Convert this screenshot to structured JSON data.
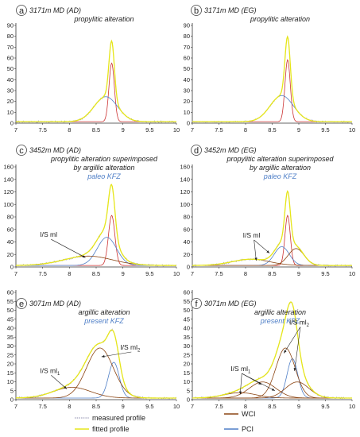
{
  "colors": {
    "measured": "#8888aa",
    "fitted": "#e6e619",
    "wci": "#8b4513",
    "pci": "#4f7fc7",
    "component": "#cc3333",
    "annotation_blue": "#4f7fc7"
  },
  "legend": {
    "measured": "measured profile",
    "fitted": "fitted profile",
    "wci": "WCI",
    "pci": "PCI"
  },
  "chart_data": [
    {
      "type": "line",
      "letter": "a",
      "title_lines": [
        "3171m MD (AD)",
        "propylitic alteration"
      ],
      "kfz": "",
      "xlim": [
        7,
        10
      ],
      "ylim": [
        0,
        90
      ],
      "xticks": [
        "7",
        "7.5",
        "8",
        "8.5",
        "9",
        "9.5",
        "10"
      ],
      "yticks": [
        0,
        10,
        20,
        30,
        40,
        50,
        60,
        70,
        80,
        90
      ],
      "components": [
        {
          "mu": 8.79,
          "amp": 54,
          "sigma": 0.05,
          "color": "component"
        },
        {
          "mu": 8.68,
          "amp": 23,
          "sigma": 0.22,
          "color": "pci"
        }
      ],
      "labels": []
    },
    {
      "type": "line",
      "letter": "b",
      "title_lines": [
        "3171m MD (EG)",
        "propylitic alteration"
      ],
      "kfz": "",
      "xlim": [
        7,
        10
      ],
      "ylim": [
        0,
        90
      ],
      "xticks": [
        "7",
        "7.5",
        "8",
        "8.5",
        "9",
        "9.5",
        "10"
      ],
      "yticks": [
        0,
        10,
        20,
        30,
        40,
        50,
        60,
        70,
        80,
        90
      ],
      "components": [
        {
          "mu": 8.79,
          "amp": 57,
          "sigma": 0.05,
          "color": "component"
        },
        {
          "mu": 8.68,
          "amp": 24,
          "sigma": 0.22,
          "color": "pci"
        }
      ],
      "labels": []
    },
    {
      "type": "line",
      "letter": "c",
      "title_lines": [
        "3452m MD (AD)",
        "propylitic alteration superimposed",
        "by argillic alteration"
      ],
      "kfz": "paleo KFZ",
      "xlim": [
        7,
        10
      ],
      "ylim": [
        0,
        160
      ],
      "xticks": [
        "7",
        "7.5",
        "8",
        "8.5",
        "9",
        "9.5",
        "10"
      ],
      "yticks": [
        0,
        20,
        40,
        60,
        80,
        100,
        120,
        140,
        160
      ],
      "components": [
        {
          "mu": 8.79,
          "amp": 80,
          "sigma": 0.06,
          "color": "component"
        },
        {
          "mu": 8.7,
          "amp": 45,
          "sigma": 0.18,
          "color": "pci"
        },
        {
          "mu": 8.35,
          "amp": 15,
          "sigma": 0.45,
          "color": "wci"
        }
      ],
      "labels": [
        {
          "text": "I/S ml",
          "sub": "",
          "x": 7.45,
          "y": 48,
          "targets": [
            [
              8.3,
              15
            ]
          ]
        }
      ]
    },
    {
      "type": "line",
      "letter": "d",
      "title_lines": [
        "3452m MD (EG)",
        "propylitic alteration superimposed",
        "by argillic alteration"
      ],
      "kfz": "paleo KFZ",
      "xlim": [
        7,
        10
      ],
      "ylim": [
        0,
        160
      ],
      "xticks": [
        "7",
        "7.5",
        "8",
        "8.5",
        "9",
        "9.5",
        "10"
      ],
      "yticks": [
        0,
        20,
        40,
        60,
        80,
        100,
        120,
        140,
        160
      ],
      "components": [
        {
          "mu": 8.79,
          "amp": 80,
          "sigma": 0.05,
          "color": "component"
        },
        {
          "mu": 8.68,
          "amp": 30,
          "sigma": 0.14,
          "color": "pci"
        },
        {
          "mu": 8.95,
          "amp": 27,
          "sigma": 0.15,
          "color": "wci"
        },
        {
          "mu": 8.1,
          "amp": 10,
          "sigma": 0.35,
          "color": "wci"
        }
      ],
      "labels": [
        {
          "text": "I/S ml",
          "sub": "",
          "x": 7.95,
          "y": 47,
          "targets": [
            [
              8.45,
              22
            ],
            [
              8.2,
              10
            ]
          ]
        }
      ]
    },
    {
      "type": "line",
      "letter": "e",
      "title_lines": [
        "3071m MD (AD)",
        "argillic alteration"
      ],
      "kfz": "present KFZ",
      "xlim": [
        7,
        10
      ],
      "ylim": [
        0,
        60
      ],
      "xticks": [
        "7",
        "7.5",
        "8",
        "8.5",
        "9",
        "9.5",
        "10"
      ],
      "yticks": [
        0,
        5,
        10,
        15,
        20,
        25,
        30,
        35,
        40,
        45,
        50,
        55,
        60
      ],
      "components": [
        {
          "mu": 8.83,
          "amp": 20,
          "sigma": 0.1,
          "color": "pci"
        },
        {
          "mu": 8.57,
          "amp": 28,
          "sigma": 0.25,
          "color": "wci"
        },
        {
          "mu": 8.05,
          "amp": 6,
          "sigma": 0.35,
          "color": "wci"
        }
      ],
      "labels": [
        {
          "text": "I/S ml",
          "sub": "1",
          "x": 7.45,
          "y": 15,
          "targets": [
            [
              7.95,
              6
            ]
          ]
        },
        {
          "text": "I/S ml",
          "sub": "2",
          "x": 8.95,
          "y": 28,
          "targets": [
            [
              8.6,
              24
            ]
          ]
        }
      ]
    },
    {
      "type": "line",
      "letter": "f",
      "title_lines": [
        "3071m MD (EG)",
        "argillic alteration"
      ],
      "kfz": "present KFZ",
      "xlim": [
        7,
        10
      ],
      "ylim": [
        0,
        60
      ],
      "xticks": [
        "7",
        "7.5",
        "8",
        "8.5",
        "9",
        "9.5",
        "10"
      ],
      "yticks": [
        0,
        5,
        10,
        15,
        20,
        25,
        30,
        35,
        40,
        45,
        50,
        55,
        60
      ],
      "components": [
        {
          "mu": 8.88,
          "amp": 22,
          "sigma": 0.1,
          "color": "pci"
        },
        {
          "mu": 8.75,
          "amp": 28,
          "sigma": 0.18,
          "color": "wci"
        },
        {
          "mu": 8.97,
          "amp": 9,
          "sigma": 0.22,
          "color": "wci"
        },
        {
          "mu": 8.32,
          "amp": 9,
          "sigma": 0.25,
          "color": "wci"
        },
        {
          "mu": 7.9,
          "amp": 3,
          "sigma": 0.3,
          "color": "wci"
        }
      ],
      "labels": [
        {
          "text": "I/S ml",
          "sub": "2",
          "x": 8.82,
          "y": 42,
          "targets": [
            [
              8.72,
              26
            ],
            [
              8.92,
              16
            ]
          ]
        },
        {
          "text": "I/S ml",
          "sub": "1",
          "x": 7.72,
          "y": 16,
          "targets": [
            [
              7.9,
              3
            ],
            [
              8.3,
              8.5
            ],
            [
              8.55,
              5
            ]
          ]
        }
      ]
    }
  ]
}
